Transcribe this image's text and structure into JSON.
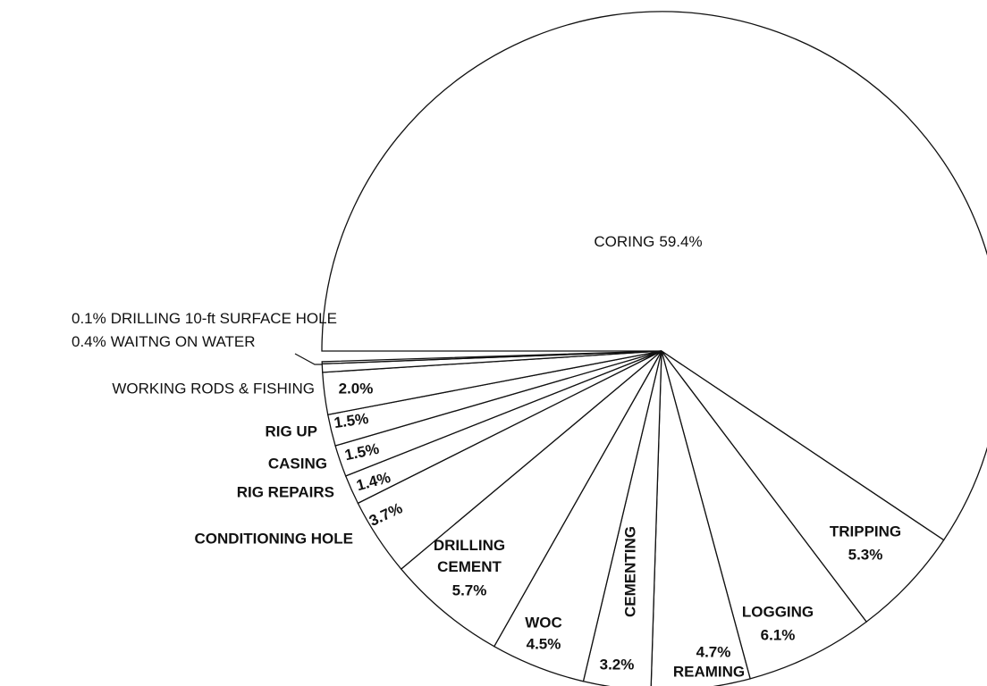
{
  "chart_data": {
    "type": "pie",
    "categories": [
      "CORING",
      "TRIPPING",
      "LOGGING",
      "REAMING",
      "CEMENTING",
      "WOC",
      "DRILLING CEMENT",
      "CONDITIONING HOLE",
      "RIG REPAIRS",
      "CASING",
      "RIG UP",
      "WORKING RODS & FISHING",
      "WAITNG ON WATER",
      "DRILLING 10-ft SURFACE HOLE"
    ],
    "values": [
      59.4,
      5.3,
      6.1,
      4.7,
      3.2,
      4.5,
      5.7,
      3.7,
      1.4,
      1.5,
      1.5,
      2.0,
      0.4,
      0.1
    ],
    "value_labels": [
      "59.4%",
      "5.3%",
      "6.1%",
      "4.7%",
      "3.2%",
      "4.5%",
      "5.7%",
      "3.7%",
      "1.4%",
      "1.5%",
      "1.5%",
      "2.0%",
      "0.4%",
      "0.1%"
    ],
    "color": "#ffffff"
  }
}
